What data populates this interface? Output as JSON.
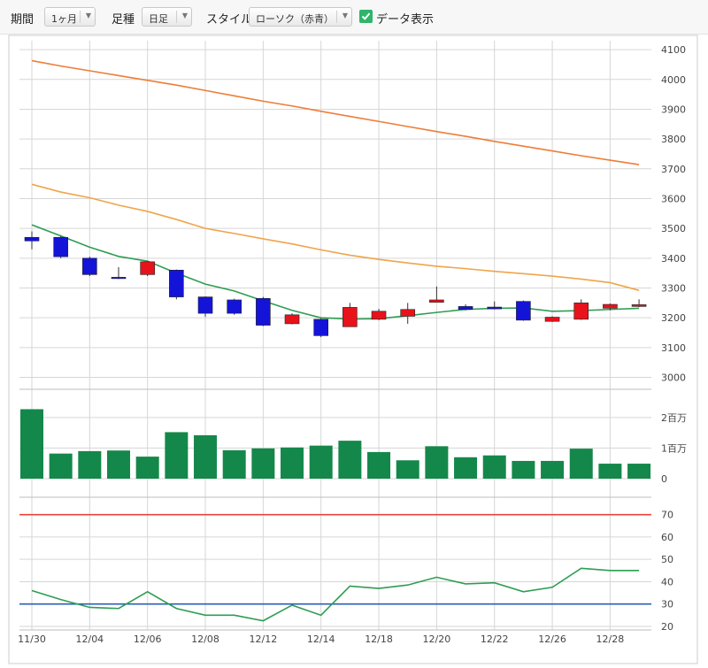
{
  "toolbar": {
    "period_label": "期間",
    "period_value": "1ヶ月",
    "bar_label": "足種",
    "bar_value": "日足",
    "style_label": "スタイル",
    "style_value": "ローソク（赤青）",
    "data_label": "データ表示",
    "data_checked": true
  },
  "chart_data": [
    {
      "type": "candlestick",
      "x_ticks": [
        "11/30",
        "12/04",
        "12/06",
        "12/08",
        "12/12",
        "12/14",
        "12/18",
        "12/20",
        "12/22",
        "12/26",
        "12/28"
      ],
      "ylim": [
        2960,
        4130
      ],
      "y_ticks": [
        "3000",
        "3100",
        "3200",
        "3300",
        "3400",
        "3500",
        "3600",
        "3700",
        "3800",
        "3900",
        "4000",
        "4100"
      ],
      "up_color": "#e8121b",
      "down_color": "#1414d8",
      "candles": [
        {
          "open": 3470,
          "close": 3458,
          "high": 3490,
          "low": 3430
        },
        {
          "open": 3470,
          "close": 3405,
          "high": 3475,
          "low": 3400
        },
        {
          "open": 3400,
          "close": 3345,
          "high": 3405,
          "low": 3340
        },
        {
          "open": 3336,
          "close": 3332,
          "high": 3370,
          "low": 3330
        },
        {
          "open": 3345,
          "close": 3388,
          "high": 3390,
          "low": 3340
        },
        {
          "open": 3360,
          "close": 3270,
          "high": 3362,
          "low": 3262
        },
        {
          "open": 3270,
          "close": 3215,
          "high": 3272,
          "low": 3203
        },
        {
          "open": 3260,
          "close": 3215,
          "high": 3264,
          "low": 3210
        },
        {
          "open": 3265,
          "close": 3175,
          "high": 3270,
          "low": 3172
        },
        {
          "open": 3180,
          "close": 3210,
          "high": 3215,
          "low": 3178
        },
        {
          "open": 3195,
          "close": 3140,
          "high": 3198,
          "low": 3135
        },
        {
          "open": 3170,
          "close": 3235,
          "high": 3250,
          "low": 3170
        },
        {
          "open": 3195,
          "close": 3222,
          "high": 3230,
          "low": 3192
        },
        {
          "open": 3205,
          "close": 3228,
          "high": 3250,
          "low": 3180
        },
        {
          "open": 3252,
          "close": 3260,
          "high": 3305,
          "low": 3252
        },
        {
          "open": 3238,
          "close": 3228,
          "high": 3245,
          "low": 3225
        },
        {
          "open": 3236,
          "close": 3230,
          "high": 3255,
          "low": 3228
        },
        {
          "open": 3255,
          "close": 3192,
          "high": 3258,
          "low": 3190
        },
        {
          "open": 3188,
          "close": 3202,
          "high": 3205,
          "low": 3186
        },
        {
          "open": 3195,
          "close": 3250,
          "high": 3262,
          "low": 3193
        },
        {
          "open": 3232,
          "close": 3245,
          "high": 3248,
          "low": 3225
        },
        {
          "open": 3238,
          "close": 3244,
          "high": 3262,
          "low": 3236
        }
      ],
      "moving_averages": [
        {
          "color": "#2e9d52",
          "values": [
            3512,
            3475,
            3437,
            3406,
            3390,
            3350,
            3313,
            3290,
            3257,
            3225,
            3200,
            3196,
            3197,
            3207,
            3218,
            3228,
            3232,
            3233,
            3222,
            3224,
            3228,
            3232
          ]
        },
        {
          "color": "#efa54a",
          "values": [
            3648,
            3622,
            3603,
            3578,
            3557,
            3530,
            3500,
            3483,
            3465,
            3448,
            3428,
            3410,
            3396,
            3384,
            3373,
            3365,
            3356,
            3348,
            3340,
            3330,
            3318,
            3292
          ]
        },
        {
          "color": "#ee7d38",
          "values": [
            4063,
            4045,
            4029,
            4013,
            3997,
            3981,
            3963,
            3945,
            3927,
            3911,
            3893,
            3876,
            3859,
            3842,
            3825,
            3809,
            3792,
            3776,
            3760,
            3744,
            3729,
            3714
          ]
        }
      ]
    },
    {
      "type": "bar",
      "y_ticks": [
        "0",
        "1百万",
        "2百万"
      ],
      "ylim": [
        0,
        2400000
      ],
      "color": "#14884a",
      "values": [
        2270000,
        820000,
        900000,
        920000,
        720000,
        1520000,
        1420000,
        930000,
        990000,
        1020000,
        1080000,
        1240000,
        870000,
        600000,
        1060000,
        700000,
        760000,
        580000,
        580000,
        980000,
        490000,
        490000
      ]
    },
    {
      "type": "line",
      "x_ticks": [
        "11/30",
        "12/04",
        "12/06",
        "12/08",
        "12/12",
        "12/14",
        "12/18",
        "12/20",
        "12/22",
        "12/26",
        "12/28"
      ],
      "y_ticks": [
        "20",
        "30",
        "40",
        "50",
        "60",
        "70"
      ],
      "ylim": [
        18,
        77
      ],
      "reference_lines": [
        {
          "value": 70,
          "color": "#e8463a"
        },
        {
          "value": 30,
          "color": "#2a5db8"
        }
      ],
      "series": [
        {
          "color": "#2e9d52",
          "values": [
            36,
            32,
            28.5,
            28,
            35.5,
            28,
            25,
            25,
            22.5,
            29.5,
            25,
            38,
            37,
            38.5,
            42,
            39,
            39.5,
            35.5,
            37.5,
            46,
            45,
            45
          ]
        }
      ]
    }
  ]
}
